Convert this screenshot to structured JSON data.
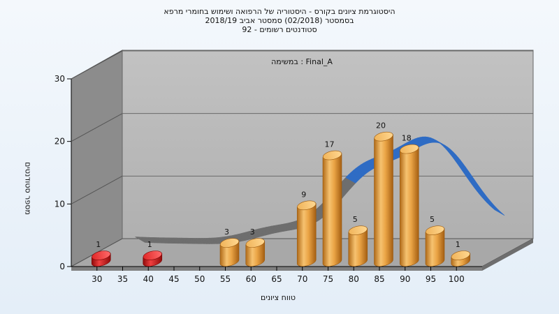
{
  "chart_data": {
    "type": "bar",
    "title": "היסטוגרמת ציונים בקורס - היסטוריה של הרפואה ושימוש בחומרי מרפא",
    "subtitle_lines": [
      "בסמסטר  (02/2018)  סמסטר אביב 2018/19",
      "סטודנטים רשומים - 92"
    ],
    "xlabel": "טווח ציונים",
    "ylabel": "מספר סטודנטים",
    "annotation": "במשימה : Final_A",
    "categories": [
      "30",
      "35",
      "40",
      "45",
      "50",
      "55",
      "60",
      "65",
      "70",
      "75",
      "80",
      "85",
      "90",
      "95",
      "100"
    ],
    "values": [
      1,
      0,
      1,
      0,
      0,
      3,
      3,
      0,
      9,
      17,
      5,
      20,
      18,
      5,
      1
    ],
    "bar_colors": [
      "#d81818",
      null,
      "#d81818",
      null,
      null,
      "#e89830",
      "#e89830",
      null,
      "#e89830",
      "#e89830",
      "#e89830",
      "#e89830",
      "#e89830",
      "#e89830",
      "#e89830"
    ],
    "yticks": [
      0,
      10,
      20,
      30
    ],
    "ylim": [
      0,
      30
    ],
    "curve": {
      "name": "",
      "color": "#2f6cc4"
    },
    "grid": true,
    "chart_3d": true
  }
}
